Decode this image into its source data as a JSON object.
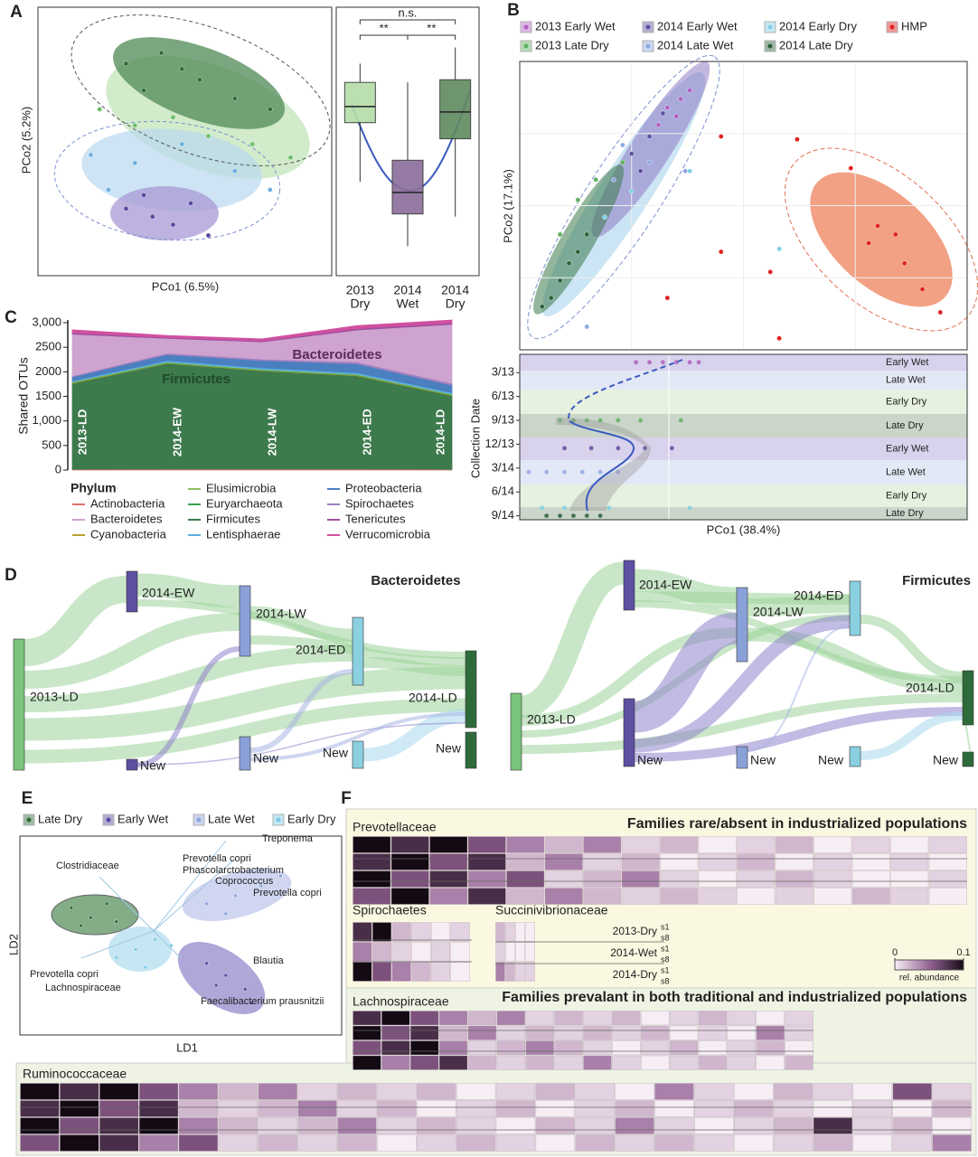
{
  "panel_labels": [
    "A",
    "B",
    "C",
    "D",
    "E",
    "F"
  ],
  "chart_data": [
    {
      "type": "scatter",
      "xlabel": "PCo1 (6.5%)",
      "ylabel": "PCo2 (5.2%)",
      "xlim": [
        0,
        100
      ],
      "ylim": [
        0,
        100
      ],
      "series": [
        {
          "color": "#2f6b3a",
          "x": [
            30,
            42,
            55,
            67,
            79,
            36,
            49
          ],
          "y": [
            79,
            83,
            73,
            66,
            62,
            69,
            77
          ]
        },
        {
          "color": "#6cc06a",
          "x": [
            21,
            33,
            58,
            73,
            86,
            46
          ],
          "y": [
            62,
            56,
            52,
            49,
            44,
            59
          ]
        },
        {
          "color": "#6fb0e0",
          "x": [
            18,
            33,
            49,
            67,
            79,
            24
          ],
          "y": [
            45,
            42,
            49,
            39,
            32,
            32
          ]
        },
        {
          "color": "#5a4aa0",
          "x": [
            30,
            39,
            46,
            52,
            58,
            36
          ],
          "y": [
            25,
            22,
            19,
            27,
            15,
            30
          ]
        }
      ]
    },
    {
      "type": "box",
      "categories": [
        [
          "2013",
          "Dry"
        ],
        [
          "2014",
          "Wet"
        ],
        [
          "2014",
          "Dry"
        ]
      ],
      "ylim": [
        0,
        100
      ],
      "annotations": [
        "n.s.",
        "**",
        "**"
      ],
      "boxes": [
        {
          "whislo": 35,
          "q1": 57,
          "med": 63,
          "q3": 72,
          "whishi": 79,
          "color": "#b5dca8"
        },
        {
          "whislo": 11,
          "q1": 23,
          "med": 31,
          "q3": 43,
          "whishi": 72,
          "color": "#8a6c9a"
        },
        {
          "whislo": 22,
          "q1": 51,
          "med": 61,
          "q3": 73,
          "whishi": 85,
          "color": "#5f8a5f"
        }
      ]
    },
    {
      "type": "scatter",
      "xlabel": "",
      "ylabel": "PCo2 (17.1%)",
      "xlim": [
        0,
        100
      ],
      "ylim": [
        0,
        100
      ],
      "series": [
        {
          "name": "2013 Early Wet",
          "color": "#b060c0",
          "x": [
            33,
            36,
            38,
            31,
            35
          ],
          "y": [
            84,
            87,
            90,
            78,
            81
          ]
        },
        {
          "name": "2013 Late Dry",
          "color": "#60b060",
          "x": [
            13,
            17,
            9,
            23
          ],
          "y": [
            52,
            59,
            40,
            65
          ]
        },
        {
          "name": "2014 Early Wet",
          "color": "#6050a0",
          "x": [
            29,
            25,
            32,
            27
          ],
          "y": [
            74,
            68,
            82,
            62
          ]
        },
        {
          "name": "2014 Late Wet",
          "color": "#90a8e0",
          "x": [
            23,
            21,
            29,
            37,
            15
          ],
          "y": [
            71,
            59,
            65,
            62,
            8
          ]
        },
        {
          "name": "2014 Early Dry",
          "color": "#80d0e8",
          "x": [
            25,
            19,
            58,
            38
          ],
          "y": [
            55,
            46,
            35,
            62
          ]
        },
        {
          "name": "2014 Late Dry",
          "color": "#2f5f3a",
          "x": [
            7,
            11,
            15,
            9,
            13,
            5
          ],
          "y": [
            18,
            30,
            40,
            24,
            34,
            15
          ]
        },
        {
          "name": "HMP",
          "color": "#e02020",
          "x": [
            62,
            74,
            80,
            86,
            90,
            78,
            84,
            94,
            45,
            56,
            58,
            33,
            45
          ],
          "y": [
            73,
            63,
            43,
            30,
            21,
            37,
            40,
            13,
            74,
            27,
            4,
            18,
            34
          ]
        }
      ]
    },
    {
      "type": "strip",
      "xlabel": "PCo1 (38.4%)",
      "ylabel": "Collection Date",
      "xlim": [
        0,
        100
      ],
      "ylim": [
        -0.3,
        20.5
      ],
      "yticks": [
        {
          "value": 2,
          "label": "3/13"
        },
        {
          "value": 5,
          "label": "6/13"
        },
        {
          "value": 8,
          "label": "9/13"
        },
        {
          "value": 11,
          "label": "12/13"
        },
        {
          "value": 14,
          "label": "3/14"
        },
        {
          "value": 17,
          "label": "6/14"
        },
        {
          "value": 20,
          "label": "9/14"
        }
      ],
      "band_labels": [
        "Early Wet",
        "Late Wet",
        "Early Dry",
        "Late Dry",
        "Early Wet",
        "Late Wet",
        "Early Dry",
        "Late Dry"
      ],
      "series": [
        {
          "color": "#b060c0",
          "x": [
            26,
            29,
            32,
            35,
            38,
            40
          ],
          "y": [
            0.7,
            0.7,
            0.7,
            0.7,
            0.7,
            0.7
          ]
        },
        {
          "color": "#60b060",
          "x": [
            9,
            12,
            15,
            18,
            22,
            27,
            36
          ],
          "y": [
            8,
            8,
            8,
            8,
            8,
            8,
            8
          ]
        },
        {
          "color": "#6050a0",
          "x": [
            10,
            16,
            22,
            28,
            34
          ],
          "y": [
            11.5,
            11.5,
            11.5,
            11.5,
            11.5
          ]
        },
        {
          "color": "#90a8e0",
          "x": [
            2,
            6,
            10,
            14,
            18,
            22
          ],
          "y": [
            14.5,
            14.5,
            14.5,
            14.5,
            14.5,
            14.5
          ]
        },
        {
          "color": "#80d0e8",
          "x": [
            5,
            10,
            20,
            38
          ],
          "y": [
            19,
            19,
            19,
            19
          ]
        },
        {
          "color": "#2f5f3a",
          "x": [
            6,
            9,
            12,
            15,
            18
          ],
          "y": [
            20,
            20,
            20,
            20,
            20
          ]
        }
      ]
    },
    {
      "type": "area",
      "ylabel": "Shared OTUs",
      "legend_title": "Phylum",
      "ylim": [
        0,
        3000
      ],
      "yticks": [
        0,
        500,
        {
          "value": 1000,
          "label": "1,000"
        },
        1500,
        2000,
        2500,
        {
          "value": 3000,
          "label": "3,000"
        }
      ],
      "categories": [
        "2013-LD",
        "2014-EW",
        "2014-LW",
        "2014-ED",
        "2014-LD"
      ],
      "annotations": [
        "Firmicutes",
        "Bacteroidetes"
      ],
      "series": [
        {
          "name": "Actinobacteria",
          "color": "#e0706a",
          "values": [
            15,
            20,
            20,
            20,
            15
          ]
        },
        {
          "name": "Bacteroidetes",
          "color": "#cfa3cf",
          "values": [
            850,
            300,
            350,
            650,
            1200
          ]
        },
        {
          "name": "Cyanobacteria",
          "color": "#b8a030",
          "values": [
            10,
            10,
            10,
            10,
            10
          ]
        },
        {
          "name": "Elusimicrobia",
          "color": "#8cc060",
          "values": [
            10,
            10,
            10,
            10,
            10
          ]
        },
        {
          "name": "Euryarchaeota",
          "color": "#3aa050",
          "values": [
            10,
            10,
            10,
            10,
            10
          ]
        },
        {
          "name": "Firmicutes",
          "color": "#3d7a4c",
          "values": [
            1750,
            2150,
            2000,
            1900,
            1500
          ]
        },
        {
          "name": "Lentisphaerae",
          "color": "#5ab0e0",
          "values": [
            20,
            30,
            30,
            30,
            30
          ]
        },
        {
          "name": "Proteobacteria",
          "color": "#4a7fc0",
          "values": [
            80,
            120,
            150,
            180,
            150
          ]
        },
        {
          "name": "Spirochaetes",
          "color": "#9a80c0",
          "values": [
            20,
            30,
            30,
            40,
            40
          ]
        },
        {
          "name": "Tenericutes",
          "color": "#a050a0",
          "values": [
            30,
            20,
            20,
            30,
            30
          ]
        },
        {
          "name": "Verrucomicrobia",
          "color": "#d050a0",
          "values": [
            60,
            40,
            40,
            60,
            60
          ]
        }
      ]
    },
    {
      "type": "scatter",
      "xlabel": "LD1",
      "ylabel": "LD2",
      "xlim": [
        0,
        100
      ],
      "ylim": [
        0,
        100
      ],
      "annotations": [
        "Treponema",
        "Clostridiaceae",
        "Prevotella copri",
        "Phascolarctobacterium",
        "Coprococcus",
        "Prevotella copri",
        "Prevotella copri",
        "Lachnospiraceae",
        "Blautia",
        "Faecalibacterium prausnitzii"
      ],
      "series": [
        {
          "name": "Late Dry",
          "color": "#2f6b3a",
          "x": [
            16,
            22,
            27,
            30,
            19
          ],
          "y": [
            64,
            59,
            66,
            57,
            55
          ]
        },
        {
          "name": "Early Wet",
          "color": "#5a4aa0",
          "x": [
            58,
            64,
            70,
            61,
            72
          ],
          "y": [
            36,
            30,
            23,
            25,
            16
          ]
        },
        {
          "name": "Late Wet",
          "color": "#8ea4dc",
          "x": [
            58,
            67,
            75,
            81,
            64
          ],
          "y": [
            66,
            70,
            75,
            80,
            61
          ]
        },
        {
          "name": "Early Dry",
          "color": "#7ccbe6",
          "x": [
            30,
            36,
            42,
            39,
            47
          ],
          "y": [
            39,
            43,
            48,
            34,
            45
          ]
        }
      ]
    },
    {
      "type": "heatmap",
      "titles": [
        "Families rare/absent in industrialized populations",
        "Families prevalant in both traditional and industrialized populations"
      ],
      "clim": [
        0,
        0.1
      ],
      "cticks": [
        0,
        0.1
      ],
      "clabel": "rel. abundance",
      "group_labels": [
        "2013-Dry",
        "2014-Wet",
        "2014-Dry"
      ],
      "sample_labels": [
        "s1",
        "s8"
      ],
      "blocks": [
        {
          "name": "Prevotellaceae",
          "rows": [
            [
              0.1,
              0.08,
              0.1,
              0.06,
              0.04,
              0.02,
              0.04,
              0.01,
              0.02,
              0,
              0.01,
              0.02,
              0,
              0.01,
              0,
              0.01
            ],
            [
              0.08,
              0.1,
              0.06,
              0.08,
              0.02,
              0.04,
              0.01,
              0.02,
              0,
              0.01,
              0.02,
              0,
              0.01,
              0,
              0.01,
              0
            ],
            [
              0.1,
              0.06,
              0.08,
              0.04,
              0.06,
              0.01,
              0.02,
              0.04,
              0.01,
              0,
              0.01,
              0.02,
              0.01,
              0,
              0,
              0.01
            ],
            [
              0.06,
              0.1,
              0.04,
              0.08,
              0.02,
              0.04,
              0.02,
              0.01,
              0.02,
              0.01,
              0,
              0.01,
              0,
              0.02,
              0.01,
              0
            ]
          ]
        },
        {
          "name": "Spirochaetes",
          "rows": [
            [
              0.08,
              0.1,
              0.02,
              0.01,
              0,
              0.01
            ],
            [
              0.04,
              0.02,
              0.01,
              0,
              0.01,
              0
            ],
            [
              0.1,
              0.06,
              0.04,
              0.02,
              0.01,
              0
            ]
          ]
        },
        {
          "name": "Succinivibrionaceae",
          "rows": [
            [
              0.02,
              0.01,
              0,
              0
            ],
            [
              0.01,
              0,
              0,
              0
            ],
            [
              0.04,
              0.02,
              0.01,
              0.01
            ]
          ]
        },
        {
          "name": "Lachnospiraceae",
          "rows": [
            [
              0.08,
              0.1,
              0.06,
              0.04,
              0.02,
              0.04,
              0.01,
              0.02,
              0.01,
              0.02,
              0,
              0.01,
              0.02,
              0.01,
              0,
              0.01
            ],
            [
              0.1,
              0.06,
              0.08,
              0.02,
              0.04,
              0.01,
              0.02,
              0.01,
              0.02,
              0.01,
              0.02,
              0,
              0.01,
              0,
              0.04,
              0.01
            ],
            [
              0.06,
              0.08,
              0.1,
              0.04,
              0.01,
              0.02,
              0.04,
              0.02,
              0.01,
              0,
              0.01,
              0.02,
              0,
              0.01,
              0.02,
              0
            ],
            [
              0.1,
              0.04,
              0.06,
              0.08,
              0.02,
              0.01,
              0.02,
              0.01,
              0.04,
              0.01,
              0,
              0.01,
              0.02,
              0.01,
              0,
              0.02
            ]
          ]
        },
        {
          "name": "Ruminococcaceae",
          "rows": [
            [
              0.1,
              0.08,
              0.1,
              0.06,
              0.04,
              0.02,
              0.04,
              0.01,
              0.02,
              0.01,
              0.02,
              0,
              0.01,
              0.02,
              0.01,
              0,
              0.04,
              0.01,
              0,
              0.02,
              0.01,
              0,
              0.06,
              0.01
            ],
            [
              0.08,
              0.1,
              0.06,
              0.08,
              0.02,
              0.01,
              0.02,
              0.04,
              0.01,
              0.02,
              0,
              0.01,
              0.02,
              0,
              0.01,
              0.02,
              0,
              0.01,
              0.02,
              0.01,
              0,
              0.01,
              0,
              0.02
            ],
            [
              0.1,
              0.06,
              0.08,
              0.1,
              0.04,
              0.02,
              0.01,
              0.02,
              0.04,
              0.01,
              0.02,
              0.01,
              0,
              0.02,
              0.01,
              0.04,
              0.01,
              0,
              0.01,
              0.02,
              0.08,
              0.01,
              0.02,
              0
            ],
            [
              0.06,
              0.1,
              0.08,
              0.04,
              0.06,
              0.01,
              0.02,
              0.01,
              0.02,
              0,
              0.01,
              0.02,
              0.01,
              0,
              0.02,
              0.01,
              0.02,
              0.01,
              0,
              0.01,
              0.02,
              0,
              0.01,
              0.04
            ]
          ]
        }
      ]
    }
  ],
  "sankeys": [
    {
      "title": "Bacteroidetes",
      "nodes": [
        "2013-LD",
        "2014-EW",
        "2014-LW",
        "2014-ED",
        "2014-LD",
        "New",
        "New",
        "New",
        "New"
      ]
    },
    {
      "title": "Firmicutes",
      "nodes": [
        "2013-LD",
        "2014-EW",
        "2014-LW",
        "2014-ED",
        "2014-LD",
        "New",
        "New",
        "New",
        "New"
      ]
    }
  ]
}
